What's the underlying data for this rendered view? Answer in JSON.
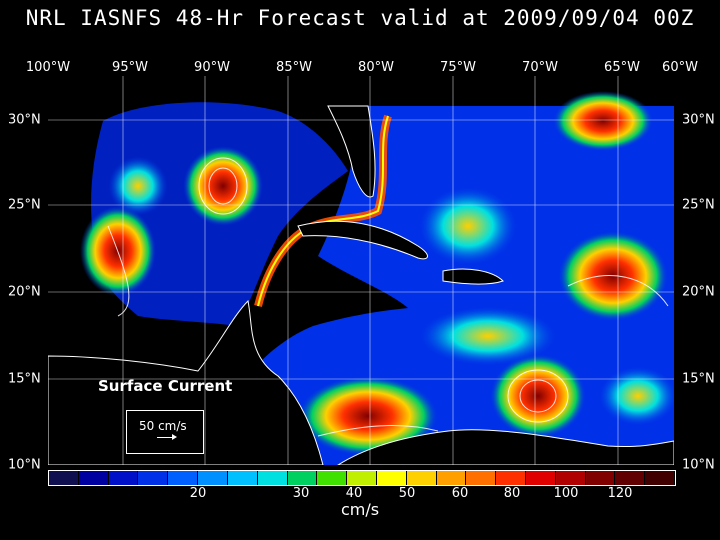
{
  "title": "NRL IASNFS  48-Hr Forecast valid at 2009/09/04 00Z",
  "lon_labels": [
    "100°W",
    "95°W",
    "90°W",
    "85°W",
    "80°W",
    "75°W",
    "70°W",
    "65°W",
    "60°W"
  ],
  "lat_labels": [
    "30°N",
    "25°N",
    "20°N",
    "15°N",
    "10°N"
  ],
  "surface_label": "Surface Current",
  "reference_vector": "50 cm/s",
  "colorbar": {
    "colors": [
      "#101050",
      "#0000a0",
      "#0010c8",
      "#0030e8",
      "#0060ff",
      "#0090ff",
      "#00c0ff",
      "#00e0e0",
      "#00d060",
      "#40e000",
      "#c0f000",
      "#ffff00",
      "#ffd000",
      "#ffa000",
      "#ff7000",
      "#ff3000",
      "#e00000",
      "#b00000",
      "#800000",
      "#600000",
      "#400000"
    ],
    "tick_labels": [
      "20",
      "30",
      "40",
      "50",
      "60",
      "80",
      "100",
      "120"
    ]
  },
  "unit": "cm/s"
}
